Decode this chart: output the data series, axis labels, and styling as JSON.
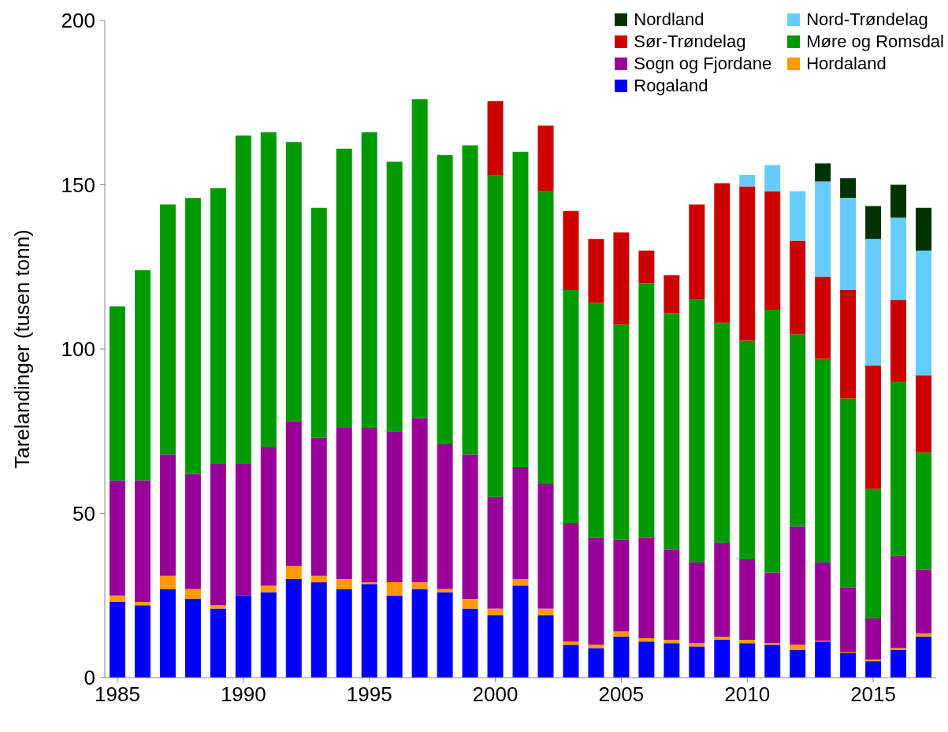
{
  "chart_data": {
    "type": "bar",
    "stacked": true,
    "ylabel": "Tarelandinger (tusen tonn)",
    "x": [
      1985,
      1986,
      1987,
      1988,
      1989,
      1990,
      1991,
      1992,
      1993,
      1994,
      1995,
      1996,
      1997,
      1998,
      1999,
      2000,
      2001,
      2002,
      2003,
      2004,
      2005,
      2006,
      2007,
      2008,
      2009,
      2010,
      2011,
      2012,
      2013,
      2014,
      2015,
      2016,
      2017
    ],
    "xlim": [
      1984.5,
      2017.5
    ],
    "xticks": [
      1985,
      1990,
      1995,
      2000,
      2005,
      2010,
      2015
    ],
    "ylim": [
      0,
      200
    ],
    "yticks": [
      0,
      50,
      100,
      150,
      200
    ],
    "legend": "top right",
    "series": [
      {
        "name": "Rogaland",
        "color": "#0000ff",
        "values": [
          23,
          22,
          27,
          24,
          21,
          25,
          26,
          30,
          29,
          27,
          28.5,
          25,
          27,
          26,
          21,
          19,
          28,
          19,
          10,
          9,
          12.5,
          11,
          10.5,
          9.5,
          11.5,
          10.5,
          10,
          8.5,
          11,
          7.5,
          5,
          8.5,
          12.5
        ]
      },
      {
        "name": "Hordaland",
        "color": "#ff9900",
        "values": [
          2,
          1,
          4,
          3,
          1,
          0,
          2,
          4,
          2,
          3,
          0.5,
          4,
          2,
          1,
          3,
          2,
          2,
          2,
          1,
          1,
          1.5,
          1,
          1,
          1,
          1,
          1,
          0.5,
          1.5,
          0.3,
          0.2,
          0.5,
          0.5,
          1
        ]
      },
      {
        "name": "Sogn og Fjordane",
        "color": "#990099",
        "values": [
          35,
          37,
          37,
          35,
          43,
          40,
          42,
          44,
          42,
          46,
          47,
          46,
          50,
          44,
          44,
          34,
          34,
          38,
          36,
          32.5,
          28,
          30.5,
          27.5,
          24.5,
          28.5,
          24.5,
          21.5,
          36,
          23.7,
          19.8,
          12.5,
          28,
          19.5
        ]
      },
      {
        "name": "Møre og Romsdal",
        "color": "#009900",
        "values": [
          53,
          64,
          76,
          84,
          84,
          100,
          96,
          85,
          70,
          85,
          90,
          82,
          97,
          88,
          94,
          98,
          96,
          89,
          71,
          71.5,
          65.5,
          77.5,
          72,
          80,
          67,
          66.5,
          80,
          58.5,
          62,
          57.5,
          39.5,
          53,
          35.5
        ]
      },
      {
        "name": "Sør-Trøndelag",
        "color": "#cc0000",
        "values": [
          null,
          null,
          null,
          null,
          null,
          null,
          null,
          null,
          null,
          null,
          null,
          null,
          null,
          null,
          null,
          22.5,
          null,
          20,
          24,
          19.5,
          28,
          10,
          11.5,
          29,
          42.5,
          47,
          36,
          28.5,
          25,
          33,
          37.5,
          25,
          23.5
        ]
      },
      {
        "name": "Nord-Trøndelag",
        "color": "#66ccff",
        "values": [
          null,
          null,
          null,
          null,
          null,
          null,
          null,
          null,
          null,
          null,
          null,
          null,
          null,
          null,
          null,
          null,
          null,
          null,
          null,
          null,
          null,
          null,
          null,
          null,
          null,
          3.5,
          8,
          15,
          29,
          28,
          38.5,
          25,
          38
        ]
      },
      {
        "name": "Nordland",
        "color": "#003300",
        "values": [
          null,
          null,
          null,
          null,
          null,
          null,
          null,
          null,
          null,
          null,
          null,
          null,
          null,
          null,
          null,
          null,
          null,
          null,
          null,
          null,
          null,
          null,
          null,
          null,
          null,
          null,
          null,
          null,
          5.5,
          6,
          10,
          10,
          13
        ]
      }
    ]
  }
}
